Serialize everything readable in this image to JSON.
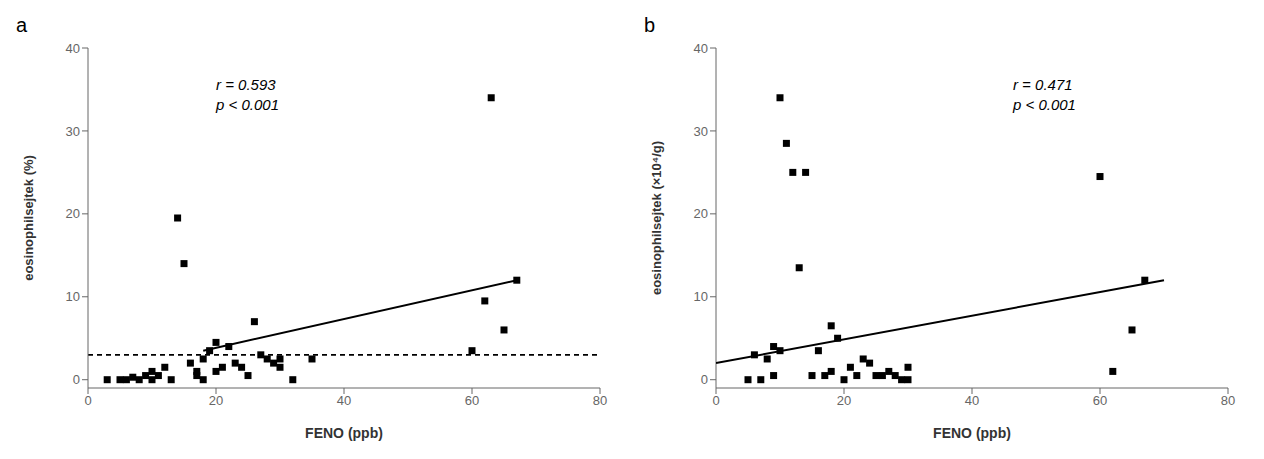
{
  "chart_data": [
    {
      "type": "scatter",
      "title": "a",
      "xlabel": "FENO (ppb)",
      "ylabel": "eosinophilsejtek (%)",
      "xlim": [
        0,
        80
      ],
      "ylim": [
        -1,
        40
      ],
      "xticks": [
        0,
        20,
        40,
        60,
        80
      ],
      "yticks": [
        0,
        10,
        20,
        30,
        40
      ],
      "grid": false,
      "annotation": "r = 0.593\np < 0.001",
      "series": [
        {
          "type": "scatter",
          "marker": "square",
          "color": "#000000",
          "x": [
            3,
            5,
            6,
            7,
            8,
            9,
            10,
            10,
            11,
            12,
            13,
            14,
            15,
            16,
            17,
            17,
            18,
            18,
            19,
            20,
            20,
            21,
            22,
            23,
            24,
            25,
            26,
            27,
            28,
            29,
            30,
            30,
            32,
            35,
            60,
            62,
            63,
            65,
            67
          ],
          "values": [
            0.0,
            0.0,
            0.0,
            0.3,
            0.0,
            0.5,
            0.0,
            1.0,
            0.5,
            1.5,
            0.0,
            19.5,
            14.0,
            2.0,
            0.5,
            1.0,
            2.5,
            0.0,
            3.5,
            4.5,
            1.0,
            1.5,
            4.0,
            2.0,
            1.5,
            0.5,
            7.0,
            3.0,
            2.5,
            2.0,
            2.5,
            1.5,
            0.0,
            2.5,
            3.5,
            9.5,
            34.0,
            6.0,
            12.0
          ]
        },
        {
          "type": "line",
          "line_style": "solid",
          "color": "#000000",
          "x": [
            18,
            67
          ],
          "values": [
            3.5,
            12.0
          ]
        },
        {
          "type": "hline",
          "line_style": "dashed",
          "color": "#000000",
          "values": [
            3.0
          ]
        }
      ]
    },
    {
      "type": "scatter",
      "title": "b",
      "xlabel": "FENO (ppb)",
      "ylabel": "eosinophilsejtek (×10⁴/g)",
      "xlim": [
        0,
        80
      ],
      "ylim": [
        -1,
        40
      ],
      "xticks": [
        0,
        20,
        40,
        60,
        80
      ],
      "yticks": [
        0,
        10,
        20,
        30,
        40
      ],
      "grid": false,
      "annotation": "r = 0.471\np < 0.001",
      "series": [
        {
          "type": "scatter",
          "marker": "square",
          "color": "#000000",
          "x": [
            5,
            6,
            7,
            8,
            9,
            9,
            10,
            10,
            11,
            12,
            13,
            14,
            15,
            16,
            17,
            18,
            18,
            19,
            20,
            21,
            22,
            23,
            24,
            25,
            26,
            27,
            28,
            29,
            30,
            30,
            60,
            62,
            65,
            67
          ],
          "values": [
            0.0,
            3.0,
            0.0,
            2.5,
            4.0,
            0.5,
            34.0,
            3.5,
            28.5,
            25.0,
            13.5,
            25.0,
            0.5,
            3.5,
            0.5,
            1.0,
            6.5,
            5.0,
            0.0,
            1.5,
            0.5,
            2.5,
            2.0,
            0.5,
            0.5,
            1.0,
            0.5,
            0.0,
            1.5,
            0.0,
            24.5,
            1.0,
            6.0,
            12.0
          ]
        },
        {
          "type": "line",
          "line_style": "solid",
          "color": "#000000",
          "x": [
            0,
            70
          ],
          "values": [
            2.0,
            12.0
          ]
        }
      ]
    }
  ]
}
